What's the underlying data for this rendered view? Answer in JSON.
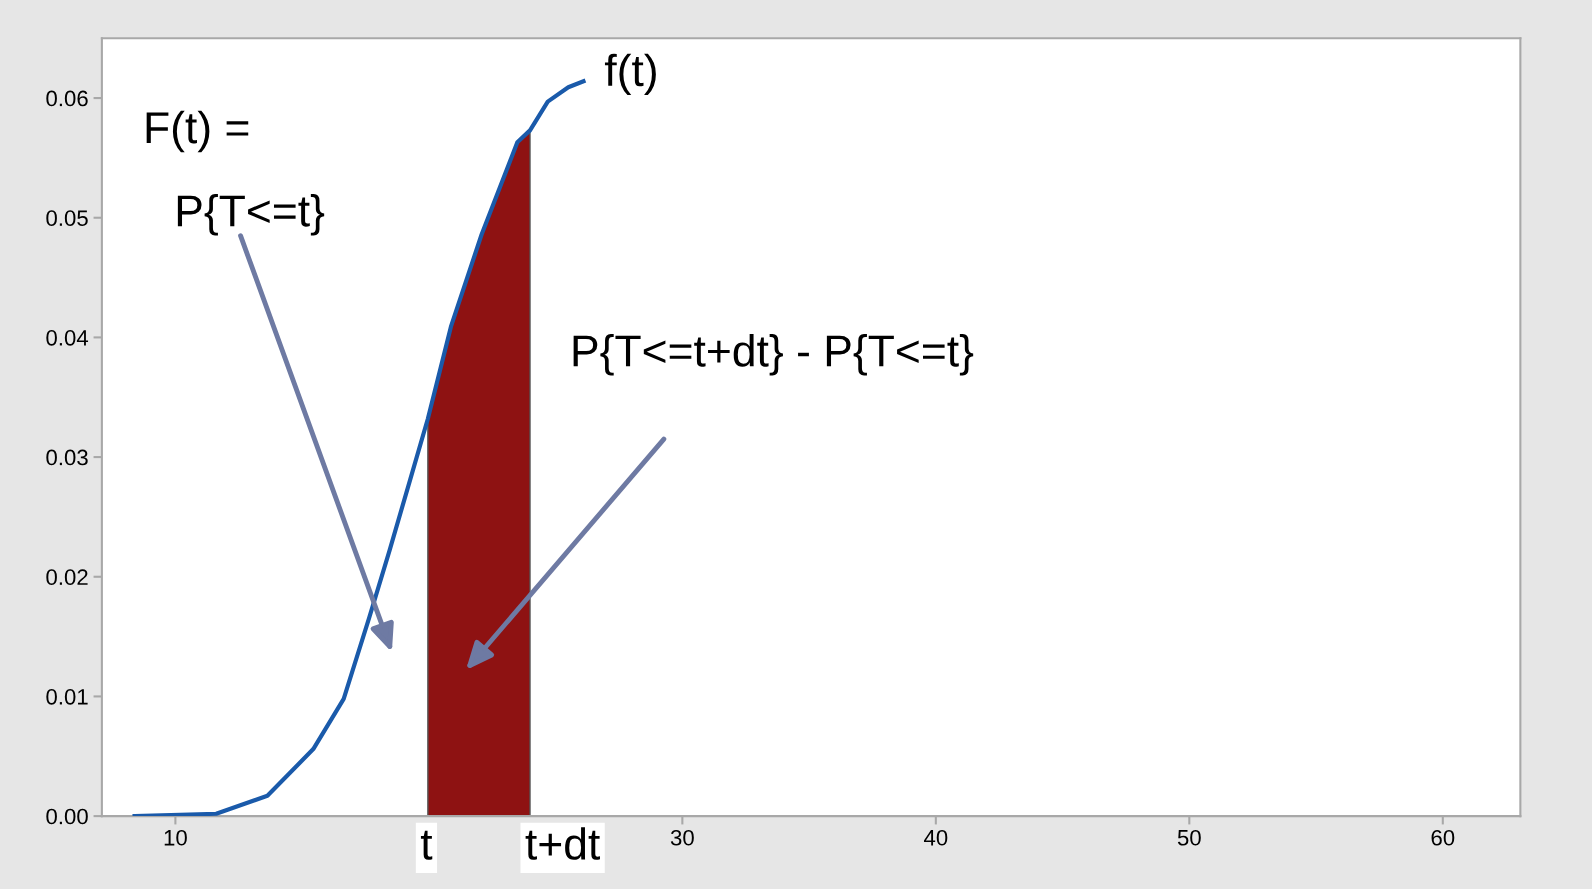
{
  "chart_data": {
    "type": "line",
    "xlim": [
      7.1,
      63.06
    ],
    "ylim": [
      0,
      0.065
    ],
    "xticks": [
      10,
      30,
      40,
      50,
      60
    ],
    "yticks": [
      {
        "value": 0,
        "label": "0.00"
      },
      {
        "value": 0.01,
        "label": "0.01"
      },
      {
        "value": 0.02,
        "label": "0.02"
      },
      {
        "value": 0.03,
        "label": "0.03"
      },
      {
        "value": 0.04,
        "label": "0.04"
      },
      {
        "value": 0.05,
        "label": "0.05"
      },
      {
        "value": 0.06,
        "label": "0.06"
      }
    ],
    "grid": false,
    "legend": false,
    "series": [
      {
        "type": "area",
        "color": "#8e1212",
        "x": [
          19.96,
          20.87,
          22.08,
          23.49,
          23.99
        ],
        "values": [
          0.0332,
          0.0409,
          0.0486,
          0.0563,
          0.0573
        ]
      },
      {
        "color": "#1a5aaa",
        "x": [
          8.39,
          11.61,
          13.63,
          15.44,
          16.64,
          17.65,
          18.45,
          19.26,
          19.96,
          20.87,
          22.08,
          23.49,
          23.99,
          24.69,
          25.5,
          26.1
        ],
        "values": [
          0,
          0.0002,
          0.0017,
          0.0056,
          0.0098,
          0.0166,
          0.0222,
          0.0281,
          0.0332,
          0.0409,
          0.0486,
          0.0563,
          0.0573,
          0.0597,
          0.0609,
          0.0614
        ]
      }
    ],
    "annotations": [
      {
        "text": "f(t)",
        "x": 26.1,
        "y": 0.0614
      },
      "F(t) =",
      "P{T<=t}",
      "P{T<=t+dt} - P{T<=t}",
      {
        "text": "t",
        "x": 19.96,
        "y": 0
      },
      {
        "text": "t+dt",
        "x": 23.99,
        "y": 0
      }
    ]
  }
}
